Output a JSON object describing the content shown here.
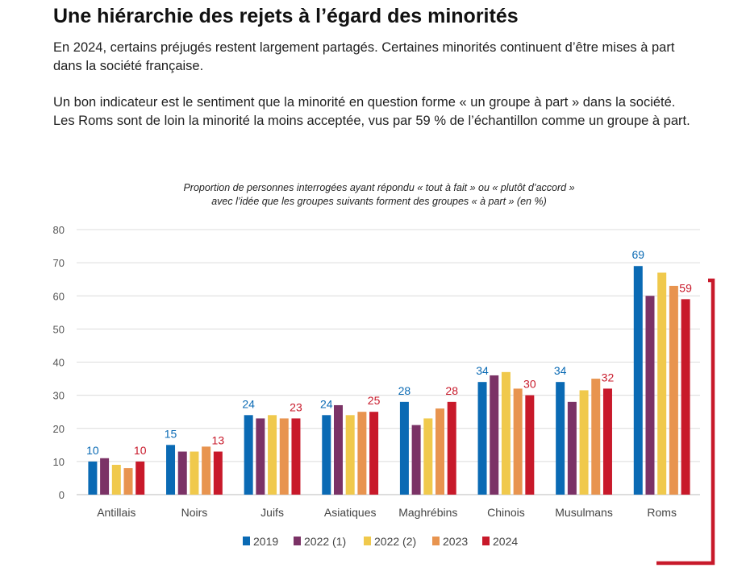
{
  "header": {
    "title": "Une hiérarchie des rejets à l’égard des minorités",
    "paragraph1": "En 2024, certains préjugés restent largement partagés. Certaines minorités continuent d’être mises à part dans la société française.",
    "paragraph2": "Un bon indicateur est le sentiment que la minorité en question forme « un groupe à part » dans la société. Les Roms sont de loin la minorité la moins acceptée, vus par 59 % de l’échantillon comme un groupe à part."
  },
  "chart_data": {
    "type": "bar",
    "title_line1": "Proportion de personnes interrogées ayant répondu « tout à fait » ou « plutôt d’accord »",
    "title_line2": "avec l’idée que les groupes suivants forment des groupes « à part » (en %)",
    "categories": [
      "Antillais",
      "Noirs",
      "Juifs",
      "Asiatiques",
      "Maghrébins",
      "Chinois",
      "Musulmans",
      "Roms"
    ],
    "series": [
      {
        "name": "2019",
        "color": "#0a6ab4",
        "values": [
          10,
          15,
          24,
          24,
          28,
          34,
          34,
          69
        ]
      },
      {
        "name": "2022 (1)",
        "color": "#7b3266",
        "values": [
          11,
          13,
          23,
          27,
          21,
          36,
          28,
          60
        ]
      },
      {
        "name": "2022 (2)",
        "color": "#f0c94c",
        "values": [
          9,
          13,
          24,
          24,
          23,
          37,
          31.5,
          67
        ]
      },
      {
        "name": "2023",
        "color": "#e8944f",
        "values": [
          8,
          14.5,
          23,
          25,
          26,
          32,
          35,
          63
        ]
      },
      {
        "name": "2024",
        "color": "#c8192a",
        "values": [
          10,
          13,
          23,
          25,
          28,
          30,
          32,
          59
        ]
      }
    ],
    "data_labels": [
      {
        "series": "2019",
        "values": [
          "10",
          "15",
          "24",
          "24",
          "28",
          "34",
          "34",
          "69"
        ],
        "color": "#0a6ab4"
      },
      {
        "series": "2024",
        "values": [
          "10",
          "13",
          "23",
          "25",
          "28",
          "30",
          "32",
          "59"
        ],
        "color": "#c8192a"
      }
    ],
    "yticks": [
      "0",
      "10",
      "20",
      "30",
      "40",
      "50",
      "60",
      "70",
      "80"
    ],
    "ylim": [
      0,
      80
    ],
    "grid": true,
    "legend_position": "bottom",
    "highlight_color": "#c8192a"
  }
}
